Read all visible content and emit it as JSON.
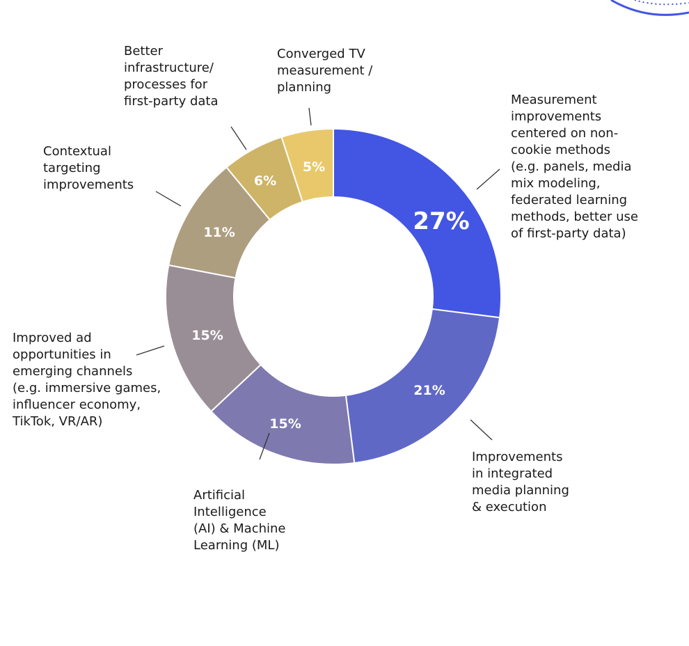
{
  "chart_data": {
    "type": "pie",
    "style": "donut",
    "slices": [
      {
        "label_lines": [
          "Measurement",
          "improvements",
          "centered on non-",
          "cookie methods",
          "(e.g. panels, media",
          "mix modeling,",
          "federated learning",
          "methods, better use",
          "of first-party data)"
        ],
        "value": 27,
        "value_label": "27%",
        "color": "#4355e3"
      },
      {
        "label_lines": [
          "Improvements",
          "in integrated",
          "media planning",
          "& execution"
        ],
        "value": 21,
        "value_label": "21%",
        "color": "#6068c6"
      },
      {
        "label_lines": [
          "Artificial",
          "Intelligence",
          "(AI) & Machine",
          "Learning (ML)"
        ],
        "value": 15,
        "value_label": "15%",
        "color": "#7e79af"
      },
      {
        "label_lines": [
          "Improved ad",
          "opportunities in",
          "emerging channels",
          "(e.g. immersive games,",
          "influencer economy,",
          "TikTok, VR/AR)"
        ],
        "value": 15,
        "value_label": "15%",
        "color": "#9a8e96"
      },
      {
        "label_lines": [
          "Contextual",
          "targeting",
          "improvements"
        ],
        "value": 11,
        "value_label": "11%",
        "color": "#ae9e80"
      },
      {
        "label_lines": [
          "Better",
          "infrastructure/",
          "processes for",
          "first-party data"
        ],
        "value": 6,
        "value_label": "6%",
        "color": "#ceb466"
      },
      {
        "label_lines": [
          "Converged TV",
          "measurement /",
          "planning"
        ],
        "value": 5,
        "value_label": "5%",
        "color": "#e8c86a"
      }
    ]
  }
}
